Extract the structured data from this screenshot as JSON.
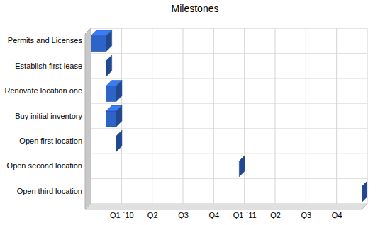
{
  "chart_data": {
    "type": "gantt",
    "title": "Milestones",
    "categories": [
      "Permits and Licenses",
      "Establish first lease",
      "Renovate location one",
      "Buy initial inventory",
      "Open first location",
      "Open second location",
      "Open third location"
    ],
    "start": [
      -0.5,
      0,
      0,
      0,
      0.33,
      4.33,
      8.33
    ],
    "end": [
      0,
      0,
      0.33,
      0.33,
      0.33,
      4.33,
      8.33
    ],
    "orientation": "horizontal",
    "color": "#2e63c8",
    "xlim": [
      -0.5,
      8.5
    ],
    "xticks": [
      {
        "value": 0.5,
        "label": "Q1 `10"
      },
      {
        "value": 1.5,
        "label": "Q2"
      },
      {
        "value": 2.5,
        "label": "Q3"
      },
      {
        "value": 3.5,
        "label": "Q4"
      },
      {
        "value": 4.5,
        "label": "Q1 `11"
      },
      {
        "value": 5.5,
        "label": "Q2"
      },
      {
        "value": 6.5,
        "label": "Q3"
      },
      {
        "value": 7.5,
        "label": "Q4"
      }
    ],
    "grid": true
  }
}
